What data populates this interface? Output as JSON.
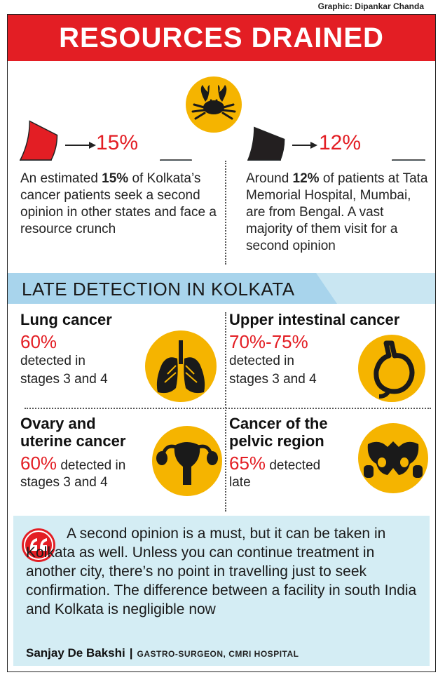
{
  "credit": "Graphic: Dipankar Chanda",
  "title": "RESOURCES DRAINED",
  "colors": {
    "accent_red": "#e31e24",
    "gauge_blue": "#a9d8ee",
    "icon_yellow": "#f5b400",
    "gauge_dark": "#231f20"
  },
  "stats": [
    {
      "percent_label": "15%",
      "percent_value": 15,
      "pre": "An estimated ",
      "bold": "15%",
      "post": " of Kolkata’s cancer patients seek a second opinion in other states and face a resource crunch"
    },
    {
      "percent_label": "12%",
      "percent_value": 12,
      "pre": "Around ",
      "bold": "12%",
      "post": " of patients at Tata Memorial Hospital, Mumbai, are from Bengal. A vast majority of them visit for a second opinion"
    }
  ],
  "crab_icon": "crab-icon",
  "section_title": "LATE DETECTION IN KOLKATA",
  "cancers": [
    {
      "name": "Lung cancer",
      "percent": "60%",
      "detail_line1": "detected in",
      "detail_line2": "stages 3 and 4",
      "icon": "lungs-icon"
    },
    {
      "name": "Upper intestinal cancer",
      "percent": "70%-75%",
      "detail_line1": "detected in",
      "detail_line2": "stages 3 and 4",
      "icon": "stomach-icon"
    },
    {
      "name_line1": "Ovary and",
      "name_line2": "uterine cancer",
      "percent": "60%",
      "detail_inline": " detected in",
      "detail_line2": "stages 3 and 4",
      "icon": "uterus-icon"
    },
    {
      "name_line1": "Cancer of the",
      "name_line2": "pelvic region",
      "percent": "65%",
      "detail_inline": " detected",
      "detail_line2": "late",
      "icon": "pelvis-icon"
    }
  ],
  "quote": {
    "text": "A second opinion is a must, but it can be taken in Kolkata as well. Unless you can continue treatment in another city, there’s no point in travelling just to seek confirmation. The difference between a facility in south India and Kolkata is negligible now",
    "author": "Sanjay De Bakshi",
    "separator": "|",
    "role": "GASTRO-SURGEON, CMRI HOSPITAL"
  }
}
